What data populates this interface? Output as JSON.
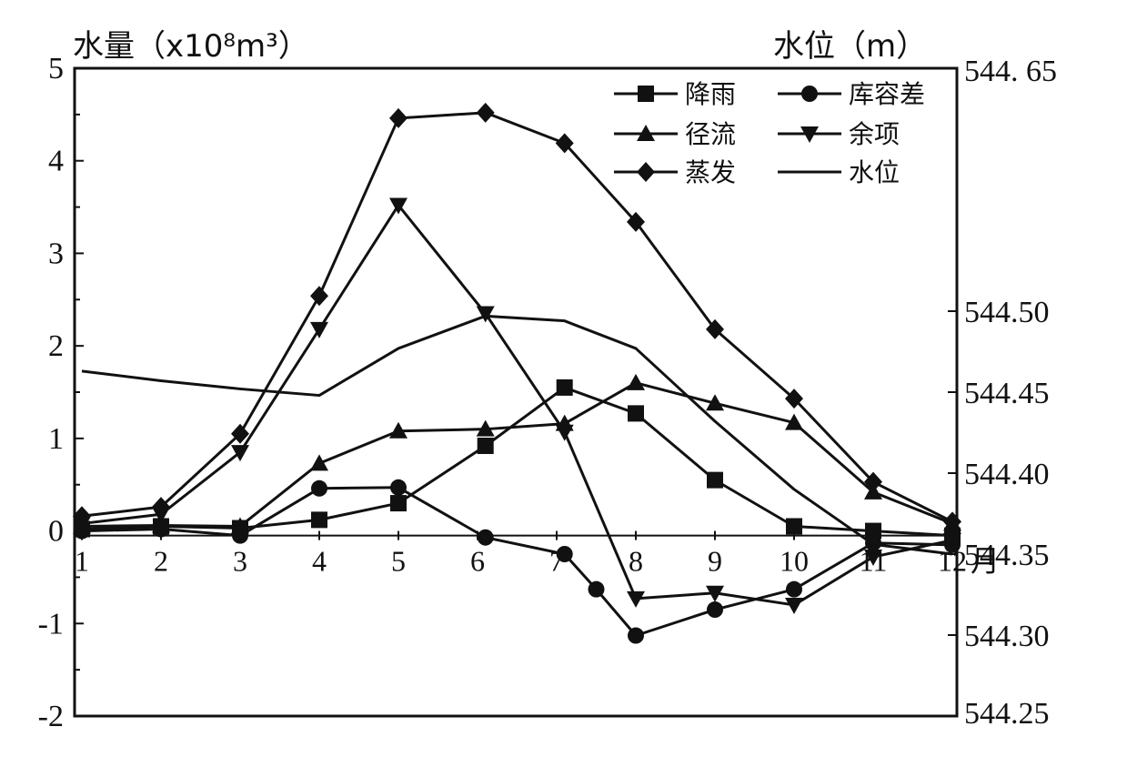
{
  "chart_data": {
    "type": "line",
    "left_axis_title": "水量（x10⁸m³）",
    "right_axis_title": "水位（m）",
    "x_unit_label": "月",
    "categories": [
      "1",
      "2",
      "3",
      "4",
      "5",
      "6",
      "7",
      "8",
      "9",
      "10",
      "11",
      "12"
    ],
    "ylim_left": [
      -2,
      5
    ],
    "yticks_left": [
      "5",
      "4",
      "3",
      "2",
      "1",
      "0",
      "-1",
      "-2"
    ],
    "ylim_right": [
      544.25,
      544.65
    ],
    "yticks_right": [
      "544. 65",
      "544.50",
      "544.45",
      "544.40",
      "544.35",
      "544.30",
      "544.25"
    ],
    "series": [
      {
        "name": "降雨",
        "marker": "square",
        "axis": "left",
        "x": [
          1,
          2,
          3,
          4,
          5,
          6.1,
          7.1,
          8,
          9,
          10,
          11,
          12
        ],
        "values": [
          0.02,
          0.05,
          0.03,
          0.12,
          0.3,
          0.92,
          1.55,
          1.27,
          0.55,
          0.05,
          0.0,
          -0.05
        ]
      },
      {
        "name": "库容差",
        "marker": "circle",
        "axis": "left",
        "x": [
          1,
          2,
          3,
          4,
          5,
          6.1,
          7.1,
          7.5,
          8,
          9,
          10,
          11,
          12
        ],
        "values": [
          0.0,
          0.02,
          -0.05,
          0.46,
          0.47,
          -0.07,
          -0.25,
          -0.63,
          -1.13,
          -0.85,
          -0.63,
          -0.13,
          -0.15
        ]
      },
      {
        "name": "径流",
        "marker": "triangle-up",
        "axis": "left",
        "x": [
          1,
          2,
          3,
          4,
          5,
          6.1,
          7.1,
          8,
          9,
          10,
          11,
          12
        ],
        "values": [
          0.05,
          0.06,
          0.05,
          0.73,
          1.08,
          1.1,
          1.16,
          1.6,
          1.38,
          1.17,
          0.42,
          0.08
        ]
      },
      {
        "name": "余项",
        "marker": "triangle-down",
        "axis": "left",
        "x": [
          1,
          2,
          3,
          4,
          5,
          6.1,
          7.1,
          8,
          9,
          10,
          11,
          12
        ],
        "values": [
          0.08,
          0.18,
          0.85,
          2.18,
          3.52,
          2.35,
          1.07,
          -0.73,
          -0.67,
          -0.8,
          -0.28,
          -0.1
        ]
      },
      {
        "name": "蒸发",
        "marker": "diamond",
        "axis": "left",
        "x": [
          1,
          2,
          3,
          4,
          5,
          6.1,
          7.1,
          8,
          9,
          10,
          11,
          12
        ],
        "values": [
          0.16,
          0.26,
          1.05,
          2.54,
          4.46,
          4.52,
          4.19,
          3.34,
          2.18,
          1.43,
          0.53,
          0.1
        ]
      },
      {
        "name": "水位",
        "marker": "none",
        "axis": "right",
        "x": [
          1,
          2,
          3,
          4,
          5,
          6.1,
          7.1,
          8,
          9,
          10,
          11,
          12
        ],
        "values": [
          544.463,
          544.457,
          544.452,
          544.448,
          544.477,
          544.497,
          544.494,
          544.477,
          544.432,
          544.39,
          544.356,
          544.35
        ]
      }
    ],
    "baseline": {
      "axis": "left",
      "value": -0.05
    },
    "legend_placement": "top-right",
    "grid": false
  }
}
